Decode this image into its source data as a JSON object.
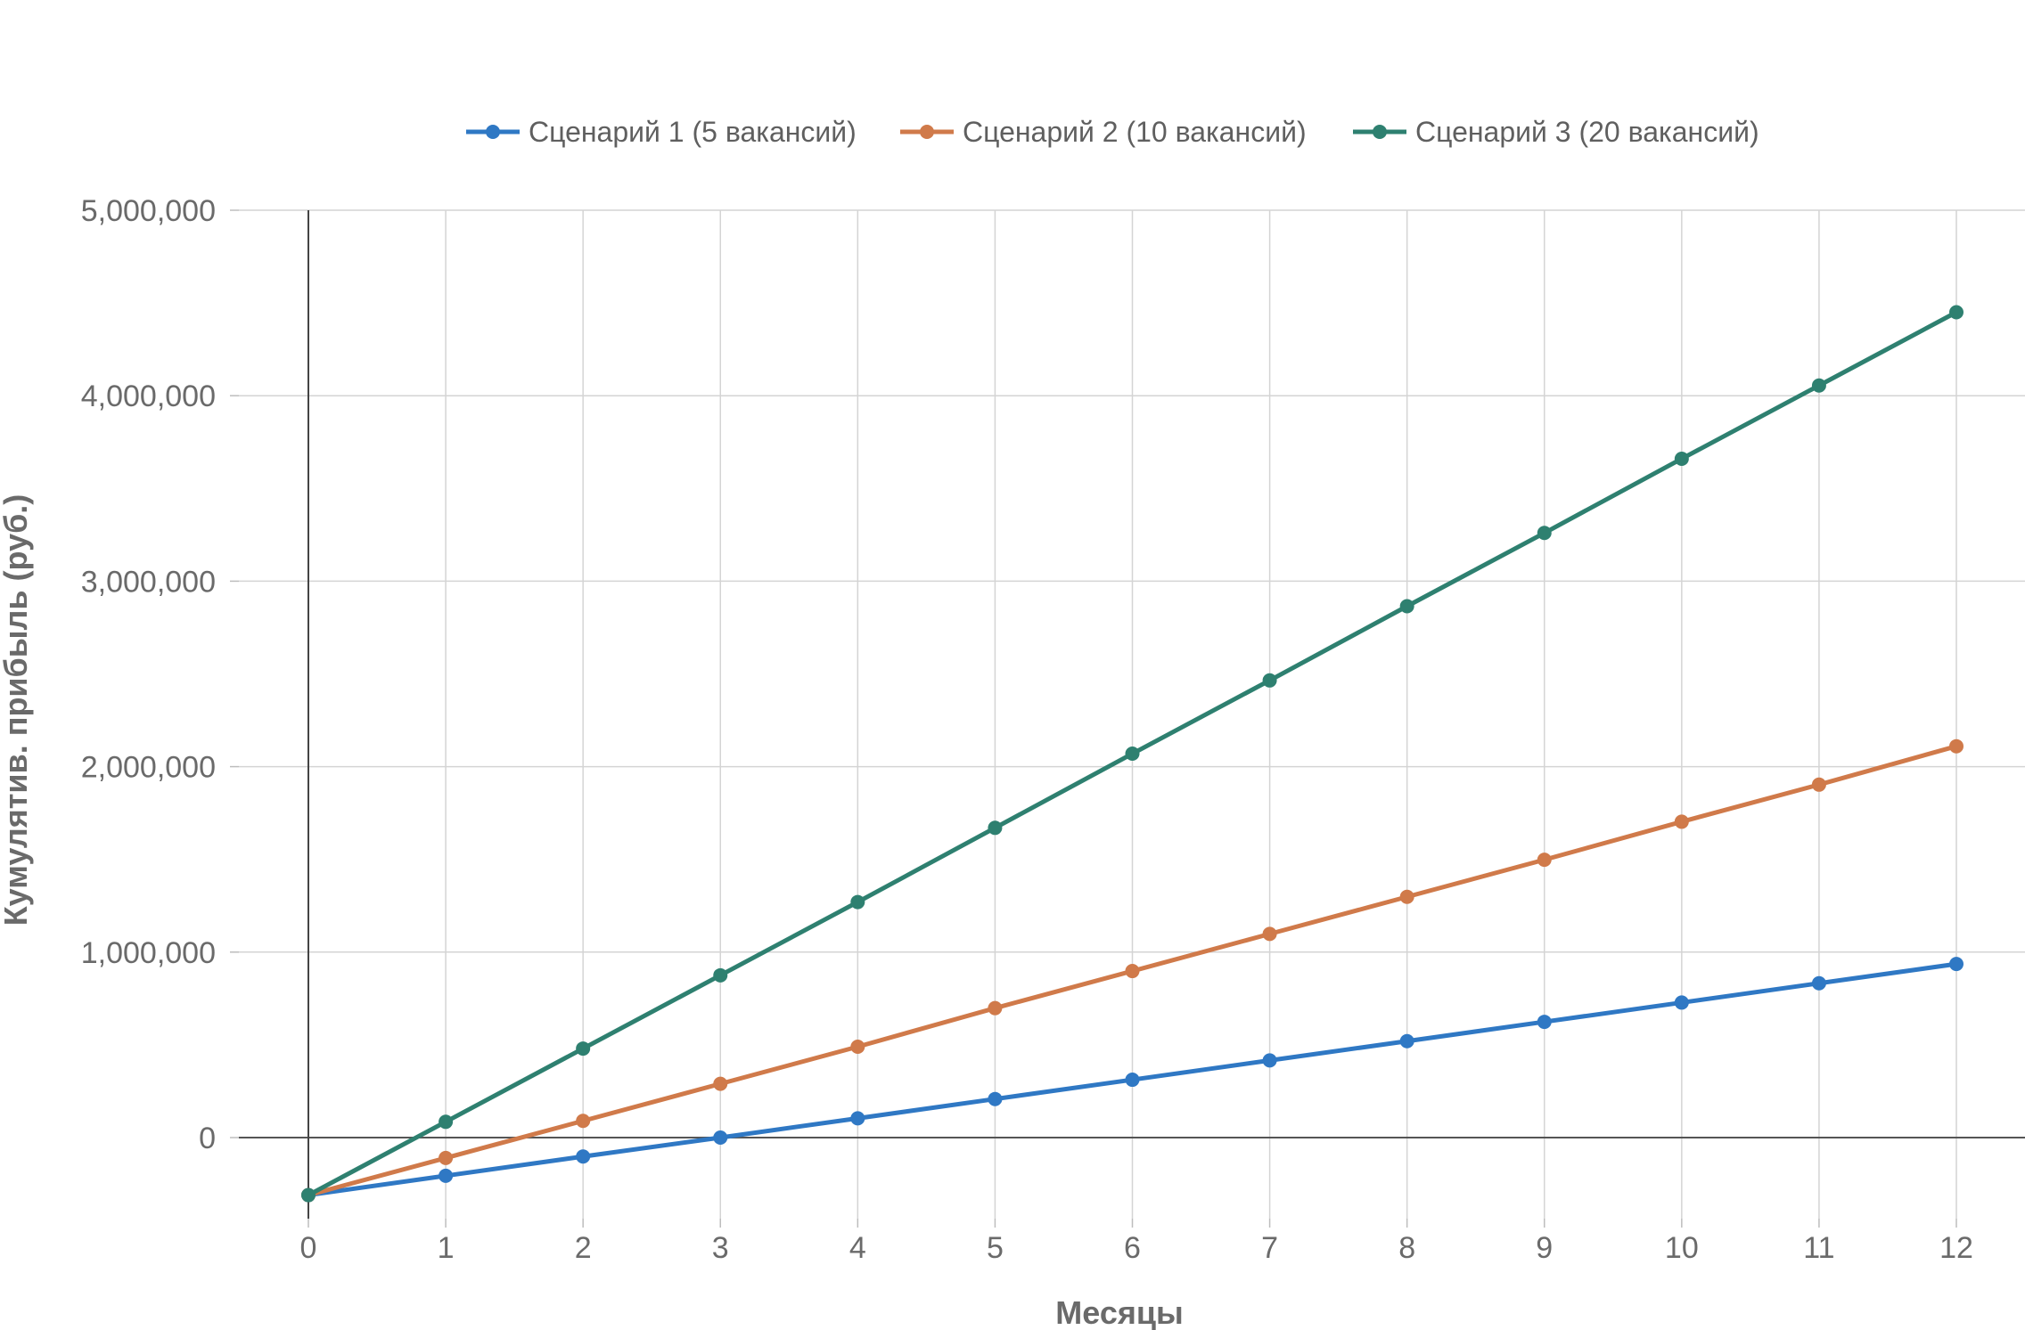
{
  "chart_data": {
    "type": "line",
    "title": "",
    "xlabel": "Месяцы",
    "ylabel": "Кумулятив. прибыль (руб.)",
    "x": [
      0,
      1,
      2,
      3,
      4,
      5,
      6,
      7,
      8,
      9,
      10,
      11,
      12
    ],
    "xlim": [
      0,
      12
    ],
    "ylim": [
      -300000,
      5000000
    ],
    "y_ticks": [
      0,
      1000000,
      2000000,
      3000000,
      4000000,
      5000000
    ],
    "y_tick_labels": [
      "0",
      "1,000,000",
      "2,000,000",
      "3,000,000",
      "4,000,000",
      "5,000,000"
    ],
    "x_tick_labels": [
      "0",
      "1",
      "2",
      "3",
      "4",
      "5",
      "6",
      "7",
      "8",
      "9",
      "10",
      "11",
      "12"
    ],
    "grid": true,
    "legend_position": "top-center",
    "series": [
      {
        "name": "Сценарий 1 (5 вакансий)",
        "color": "#2f78c4",
        "values": [
          -310000,
          -206000,
          -102000,
          0,
          104000,
          208000,
          312000,
          416000,
          520000,
          624000,
          728000,
          832000,
          936000
        ]
      },
      {
        "name": "Сценарий 2 (10 вакансий)",
        "color": "#d07a4a",
        "values": [
          -310000,
          -110000,
          90000,
          290000,
          490000,
          698000,
          898000,
          1098000,
          1298000,
          1498000,
          1703000,
          1903000,
          2110000
        ]
      },
      {
        "name": "Сценарий 3 (20 вакансий)",
        "color": "#2e8070",
        "values": [
          -310000,
          85000,
          480000,
          875000,
          1270000,
          1670000,
          2070000,
          2465000,
          2865000,
          3260000,
          3660000,
          4055000,
          4450000
        ]
      }
    ]
  }
}
